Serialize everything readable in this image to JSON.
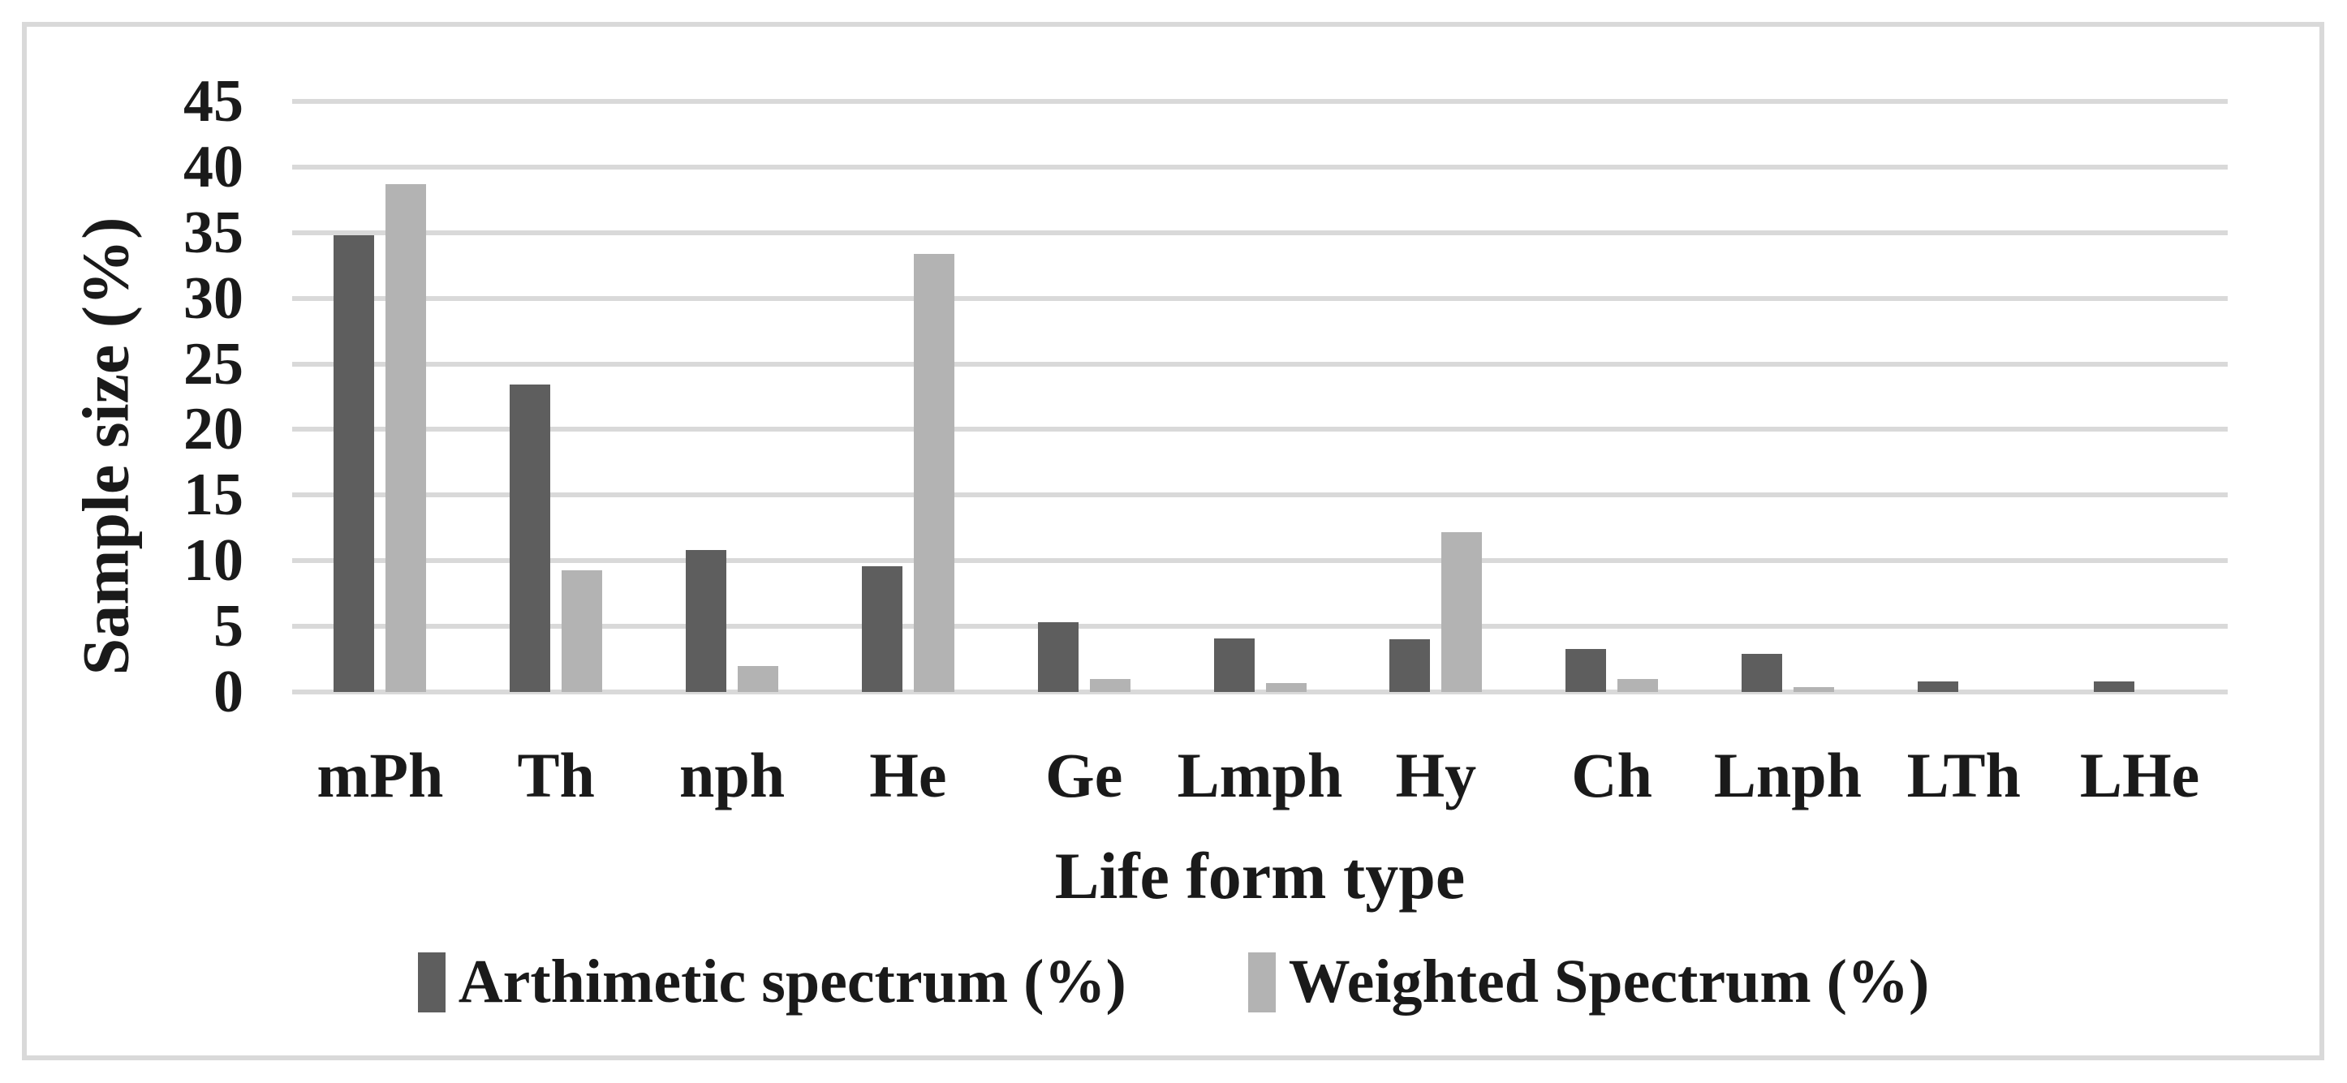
{
  "chart_data": {
    "type": "bar",
    "title": "",
    "xlabel": "Life form type",
    "ylabel": "Sample size (%)",
    "ylim": [
      0,
      45
    ],
    "ytick_step": 5,
    "yticks": [
      45,
      40,
      35,
      30,
      25,
      20,
      15,
      10,
      5,
      0
    ],
    "grid": true,
    "legend_position": "bottom",
    "categories": [
      "mPh",
      "Th",
      "nph",
      "He",
      "Ge",
      "Lmph",
      "Hy",
      "Ch",
      "Lnph",
      "LTh",
      "LHe"
    ],
    "series": [
      {
        "name": "Arthimetic spectrum (%)",
        "color": "#5e5e5e",
        "values": [
          34.8,
          23.4,
          10.8,
          9.6,
          5.3,
          4.1,
          4.0,
          3.3,
          2.9,
          0.8,
          0.8
        ]
      },
      {
        "name": "Weighted Spectrum (%)",
        "color": "#b3b3b3",
        "values": [
          38.7,
          9.3,
          2.0,
          33.4,
          1.0,
          0.7,
          12.2,
          1.0,
          0.4,
          0,
          0
        ]
      }
    ]
  },
  "colors": {
    "gridline": "#d9d9d9",
    "frame_border": "#d9d9d9",
    "text": "#1a1a1a",
    "background": "#ffffff"
  }
}
